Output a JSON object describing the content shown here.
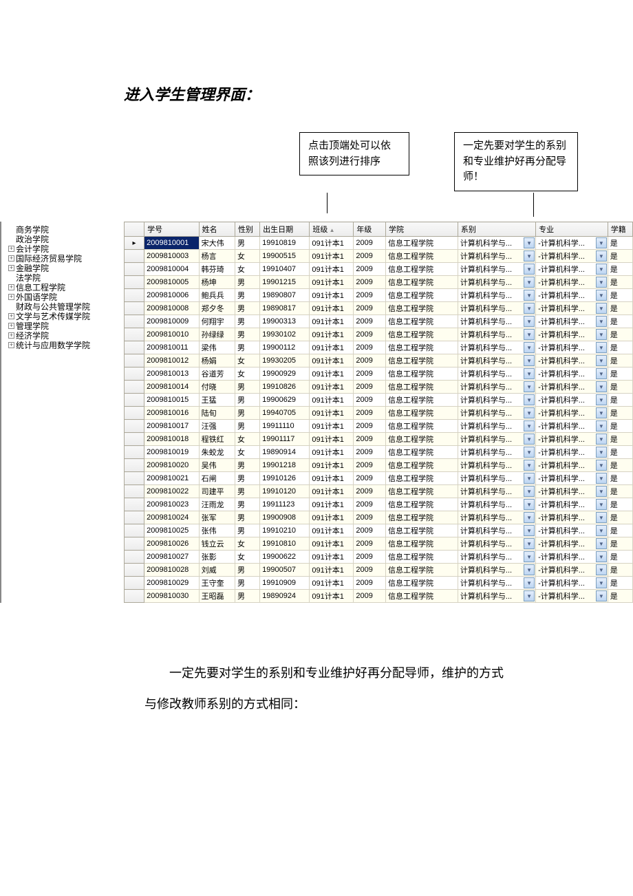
{
  "title": "进入学生管理界面：",
  "callouts": {
    "c1": "点击顶端处可以依照该列进行排序",
    "c2": "一定先要对学生的系别和专业维护好再分配导师！"
  },
  "tree": {
    "items": [
      {
        "label": "商务学院",
        "expandable": false,
        "prefix": "├"
      },
      {
        "label": "政治学院",
        "expandable": false,
        "prefix": "├"
      },
      {
        "label": "会计学院",
        "expandable": true,
        "prefix": ""
      },
      {
        "label": "国际经济贸易学院",
        "expandable": true,
        "prefix": ""
      },
      {
        "label": "金融学院",
        "expandable": true,
        "prefix": ""
      },
      {
        "label": "法学院",
        "expandable": false,
        "prefix": "├"
      },
      {
        "label": "信息工程学院",
        "expandable": true,
        "prefix": ""
      },
      {
        "label": "外国语学院",
        "expandable": true,
        "prefix": ""
      },
      {
        "label": "财政与公共管理学院",
        "expandable": false,
        "prefix": "├"
      },
      {
        "label": "文学与艺术传媒学院",
        "expandable": true,
        "prefix": ""
      },
      {
        "label": "管理学院",
        "expandable": true,
        "prefix": ""
      },
      {
        "label": "经济学院",
        "expandable": true,
        "prefix": ""
      },
      {
        "label": "统计与应用数学学院",
        "expandable": true,
        "prefix": ""
      }
    ]
  },
  "grid": {
    "headers": {
      "id": "学号",
      "name": "姓名",
      "sex": "性别",
      "birth": "出生日期",
      "class": "班级",
      "year": "年级",
      "college": "学院",
      "dept": "系别",
      "major": "专业",
      "status": "学籍"
    },
    "dept_text": "计算机科学与...",
    "major_text": "-计算机科学...",
    "college_text": "信息工程学院",
    "class_text": "091计本1",
    "year_text": "2009",
    "status_text": "是",
    "rows": [
      {
        "id": "2009810001",
        "name": "宋大伟",
        "sex": "男",
        "birth": "19910819",
        "selected": true,
        "indicator": true
      },
      {
        "id": "2009810003",
        "name": "杨言",
        "sex": "女",
        "birth": "19900515"
      },
      {
        "id": "2009810004",
        "name": "韩芬琦",
        "sex": "女",
        "birth": "19910407"
      },
      {
        "id": "2009810005",
        "name": "杨坤",
        "sex": "男",
        "birth": "19901215"
      },
      {
        "id": "2009810006",
        "name": "鲍兵兵",
        "sex": "男",
        "birth": "19890807"
      },
      {
        "id": "2009810008",
        "name": "郑夕冬",
        "sex": "男",
        "birth": "19890817"
      },
      {
        "id": "2009810009",
        "name": "何翔宇",
        "sex": "男",
        "birth": "19900313"
      },
      {
        "id": "2009810010",
        "name": "孙绿绿",
        "sex": "男",
        "birth": "19930102"
      },
      {
        "id": "2009810011",
        "name": "梁伟",
        "sex": "男",
        "birth": "19900112"
      },
      {
        "id": "2009810012",
        "name": "杨娟",
        "sex": "女",
        "birth": "19930205"
      },
      {
        "id": "2009810013",
        "name": "谷道芳",
        "sex": "女",
        "birth": "19900929"
      },
      {
        "id": "2009810014",
        "name": "付晓",
        "sex": "男",
        "birth": "19910826"
      },
      {
        "id": "2009810015",
        "name": "王猛",
        "sex": "男",
        "birth": "19900629"
      },
      {
        "id": "2009810016",
        "name": "陆旬",
        "sex": "男",
        "birth": "19940705"
      },
      {
        "id": "2009810017",
        "name": "汪强",
        "sex": "男",
        "birth": "19911110"
      },
      {
        "id": "2009810018",
        "name": "程铁红",
        "sex": "女",
        "birth": "19901117"
      },
      {
        "id": "2009810019",
        "name": "朱蛟龙",
        "sex": "女",
        "birth": "19890914"
      },
      {
        "id": "2009810020",
        "name": "吴伟",
        "sex": "男",
        "birth": "19901218"
      },
      {
        "id": "2009810021",
        "name": "石闸",
        "sex": "男",
        "birth": "19910126"
      },
      {
        "id": "2009810022",
        "name": "司建平",
        "sex": "男",
        "birth": "19910120"
      },
      {
        "id": "2009810023",
        "name": "汪雨龙",
        "sex": "男",
        "birth": "19911123"
      },
      {
        "id": "2009810024",
        "name": "张军",
        "sex": "男",
        "birth": "19900908"
      },
      {
        "id": "2009810025",
        "name": "张伟",
        "sex": "男",
        "birth": "19910210"
      },
      {
        "id": "2009810026",
        "name": "钱立云",
        "sex": "女",
        "birth": "19910810"
      },
      {
        "id": "2009810027",
        "name": "张影",
        "sex": "女",
        "birth": "19900622"
      },
      {
        "id": "2009810028",
        "name": "刘威",
        "sex": "男",
        "birth": "19900507"
      },
      {
        "id": "2009810029",
        "name": "王守奎",
        "sex": "男",
        "birth": "19910909"
      },
      {
        "id": "2009810030",
        "name": "王昭磊",
        "sex": "男",
        "birth": "19890924"
      }
    ]
  },
  "footer": {
    "t1": "一定先要对学生的系别和专业维护好再分配导师，维护的方式",
    "t2": "与修改教师系别的方式相同："
  }
}
